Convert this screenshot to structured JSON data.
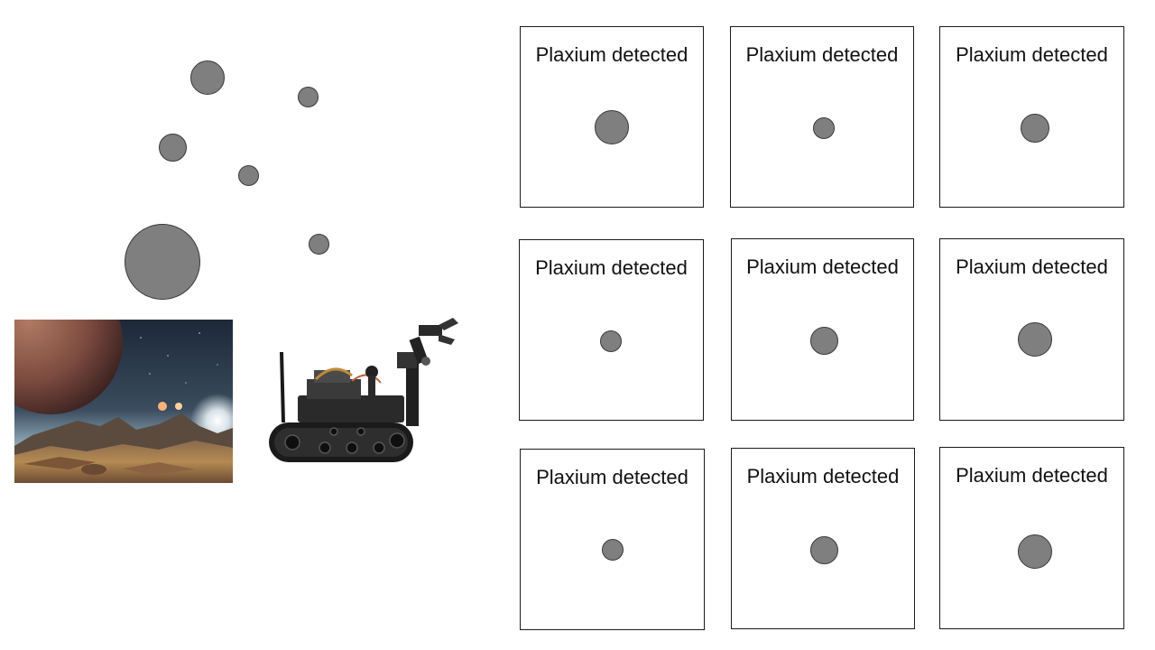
{
  "scene": {
    "stones": [
      {
        "name": "plaxium-stone-1"
      },
      {
        "name": "plaxium-stone-2"
      },
      {
        "name": "plaxium-stone-3"
      },
      {
        "name": "plaxium-stone-4"
      },
      {
        "name": "plaxium-stone-5"
      },
      {
        "name": "plaxium-stone-6"
      },
      {
        "name": "plaxium-stone-7"
      }
    ],
    "images": {
      "planet": "alien-planet-landscape",
      "robot": "tracked-robot-with-arm"
    }
  },
  "panels": [
    {
      "label": "Plaxium detected"
    },
    {
      "label": "Plaxium detected"
    },
    {
      "label": "Plaxium detected"
    },
    {
      "label": "Plaxium detected"
    },
    {
      "label": "Plaxium detected"
    },
    {
      "label": "Plaxium detected"
    },
    {
      "label": "Plaxium detected"
    },
    {
      "label": "Plaxium detected"
    },
    {
      "label": "Plaxium detected"
    }
  ],
  "colors": {
    "stone_fill": "#7f7f7f",
    "stone_stroke": "#3a3a3a",
    "panel_border": "#1a1a1a"
  }
}
